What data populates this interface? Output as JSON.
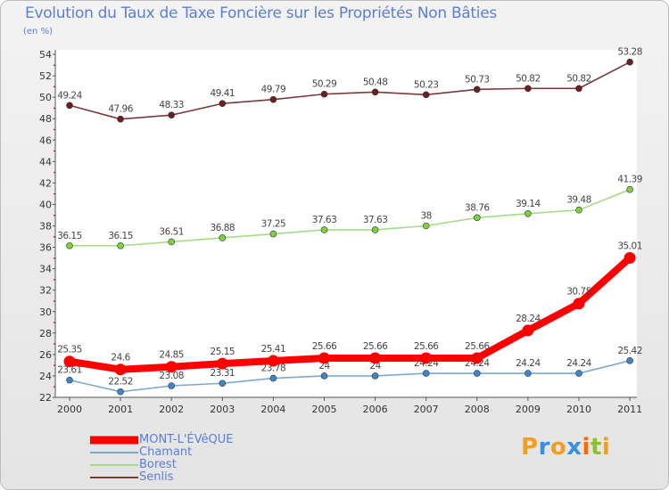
{
  "title": "Evolution du Taux de Taxe Foncière sur les Propriétés Non Bâties",
  "subtitle": "(en %)",
  "brand": {
    "text": "Proxiti",
    "letter_colors": [
      "#f0a020",
      "#3a8fd8",
      "#f0a020",
      "#3a8fd8",
      "#ff6a00",
      "#90c030",
      "#f0a020"
    ]
  },
  "chart_data": {
    "type": "line",
    "title": "Evolution du Taux de Taxe Foncière sur les Propriétés Non Bâties",
    "ylabel": "(en %)",
    "xlabel": "",
    "x": [
      "2000",
      "2001",
      "2002",
      "2003",
      "2004",
      "2005",
      "2006",
      "2007",
      "2008",
      "2009",
      "2010",
      "2011"
    ],
    "ylim": [
      22,
      54
    ],
    "yticks": [
      22,
      24,
      26,
      28,
      30,
      32,
      34,
      36,
      38,
      40,
      42,
      44,
      46,
      48,
      50,
      52,
      54
    ],
    "grid": "none",
    "legend": "bottom-left",
    "series": [
      {
        "name": "MONT-L'ÉVêQUE",
        "color": "#ff0000",
        "marker": "#ff0000",
        "labels": [
          "25.35",
          "24.6",
          "24.85",
          "25.15",
          "25.41",
          "25.66",
          "25.66",
          "25.66",
          "25.66",
          "28.24",
          "30.75",
          "35.01"
        ],
        "values": [
          25.35,
          24.6,
          24.85,
          25.15,
          25.41,
          25.66,
          25.66,
          25.66,
          25.66,
          28.24,
          30.75,
          35.01
        ]
      },
      {
        "name": "Chamant",
        "color": "#7ca7cf",
        "marker": "#3f86c8",
        "labels": [
          "23.61",
          "22.52",
          "23.08",
          "23.31",
          "23.78",
          "24",
          "24",
          "24.24",
          "24.24",
          "24.24",
          "24.24",
          "25.42"
        ],
        "values": [
          23.61,
          22.52,
          23.08,
          23.31,
          23.78,
          24,
          24,
          24.24,
          24.24,
          24.24,
          24.24,
          25.42
        ]
      },
      {
        "name": "Borest",
        "color": "#a6dc86",
        "marker": "#7ed03e",
        "labels": [
          "36.15",
          "36.15",
          "36.51",
          "36.88",
          "37.25",
          "37.63",
          "37.63",
          "38",
          "38.76",
          "39.14",
          "39.48",
          "41.39"
        ],
        "values": [
          36.15,
          36.15,
          36.51,
          36.88,
          37.25,
          37.63,
          37.63,
          38,
          38.76,
          39.14,
          39.48,
          41.39
        ]
      },
      {
        "name": "Senlis",
        "color": "#7a3a3a",
        "marker": "#6b1f1f",
        "labels": [
          "49.24",
          "47.96",
          "48.33",
          "49.41",
          "49.79",
          "50.29",
          "50.48",
          "50.23",
          "50.73",
          "50.82",
          "50.82",
          "53.28"
        ],
        "values": [
          49.24,
          47.96,
          48.33,
          49.41,
          49.79,
          50.29,
          50.48,
          50.23,
          50.73,
          50.82,
          50.82,
          53.28
        ]
      }
    ]
  }
}
